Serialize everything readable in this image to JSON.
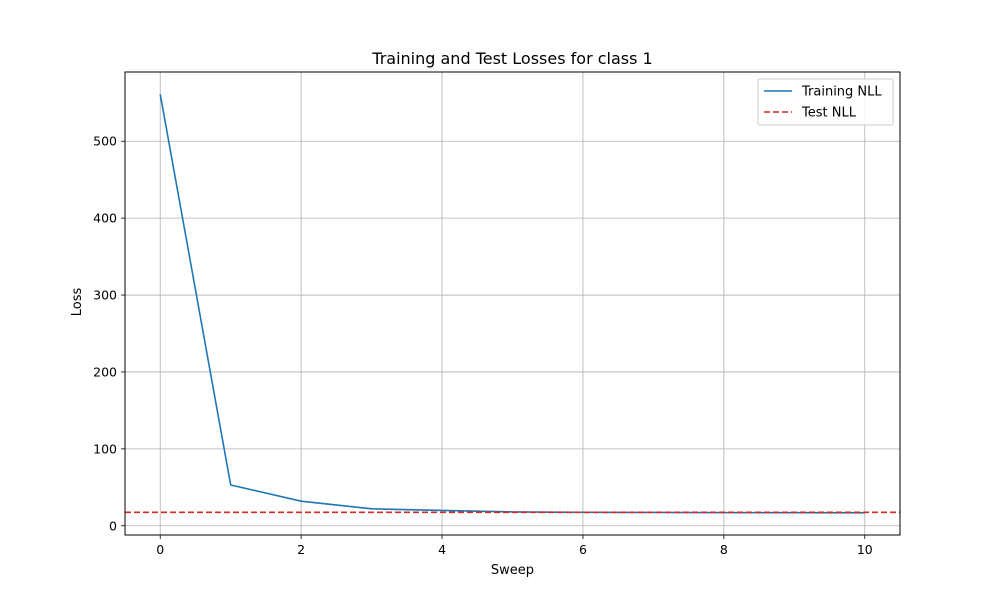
{
  "chart_data": {
    "type": "line",
    "title": "Training and Test Losses for class 1",
    "xlabel": "Sweep",
    "ylabel": "Loss",
    "xlim": [
      -0.5,
      10.5
    ],
    "ylim": [
      -12,
      590
    ],
    "xticks": [
      0,
      2,
      4,
      6,
      8,
      10
    ],
    "yticks": [
      0,
      100,
      200,
      300,
      400,
      500
    ],
    "grid": true,
    "legend_position": "top-right",
    "series": [
      {
        "name": "Training NLL",
        "style": "solid",
        "color": "#1f77b4",
        "x": [
          0,
          1,
          2,
          3,
          4,
          5,
          6,
          7,
          8,
          9,
          10
        ],
        "values": [
          561,
          53,
          32,
          22,
          20,
          18,
          17.5,
          17.3,
          17.1,
          17,
          16.9
        ]
      },
      {
        "name": "Test NLL",
        "style": "dashed",
        "color": "#d62728",
        "type": "hline",
        "y": 17.5
      }
    ]
  }
}
